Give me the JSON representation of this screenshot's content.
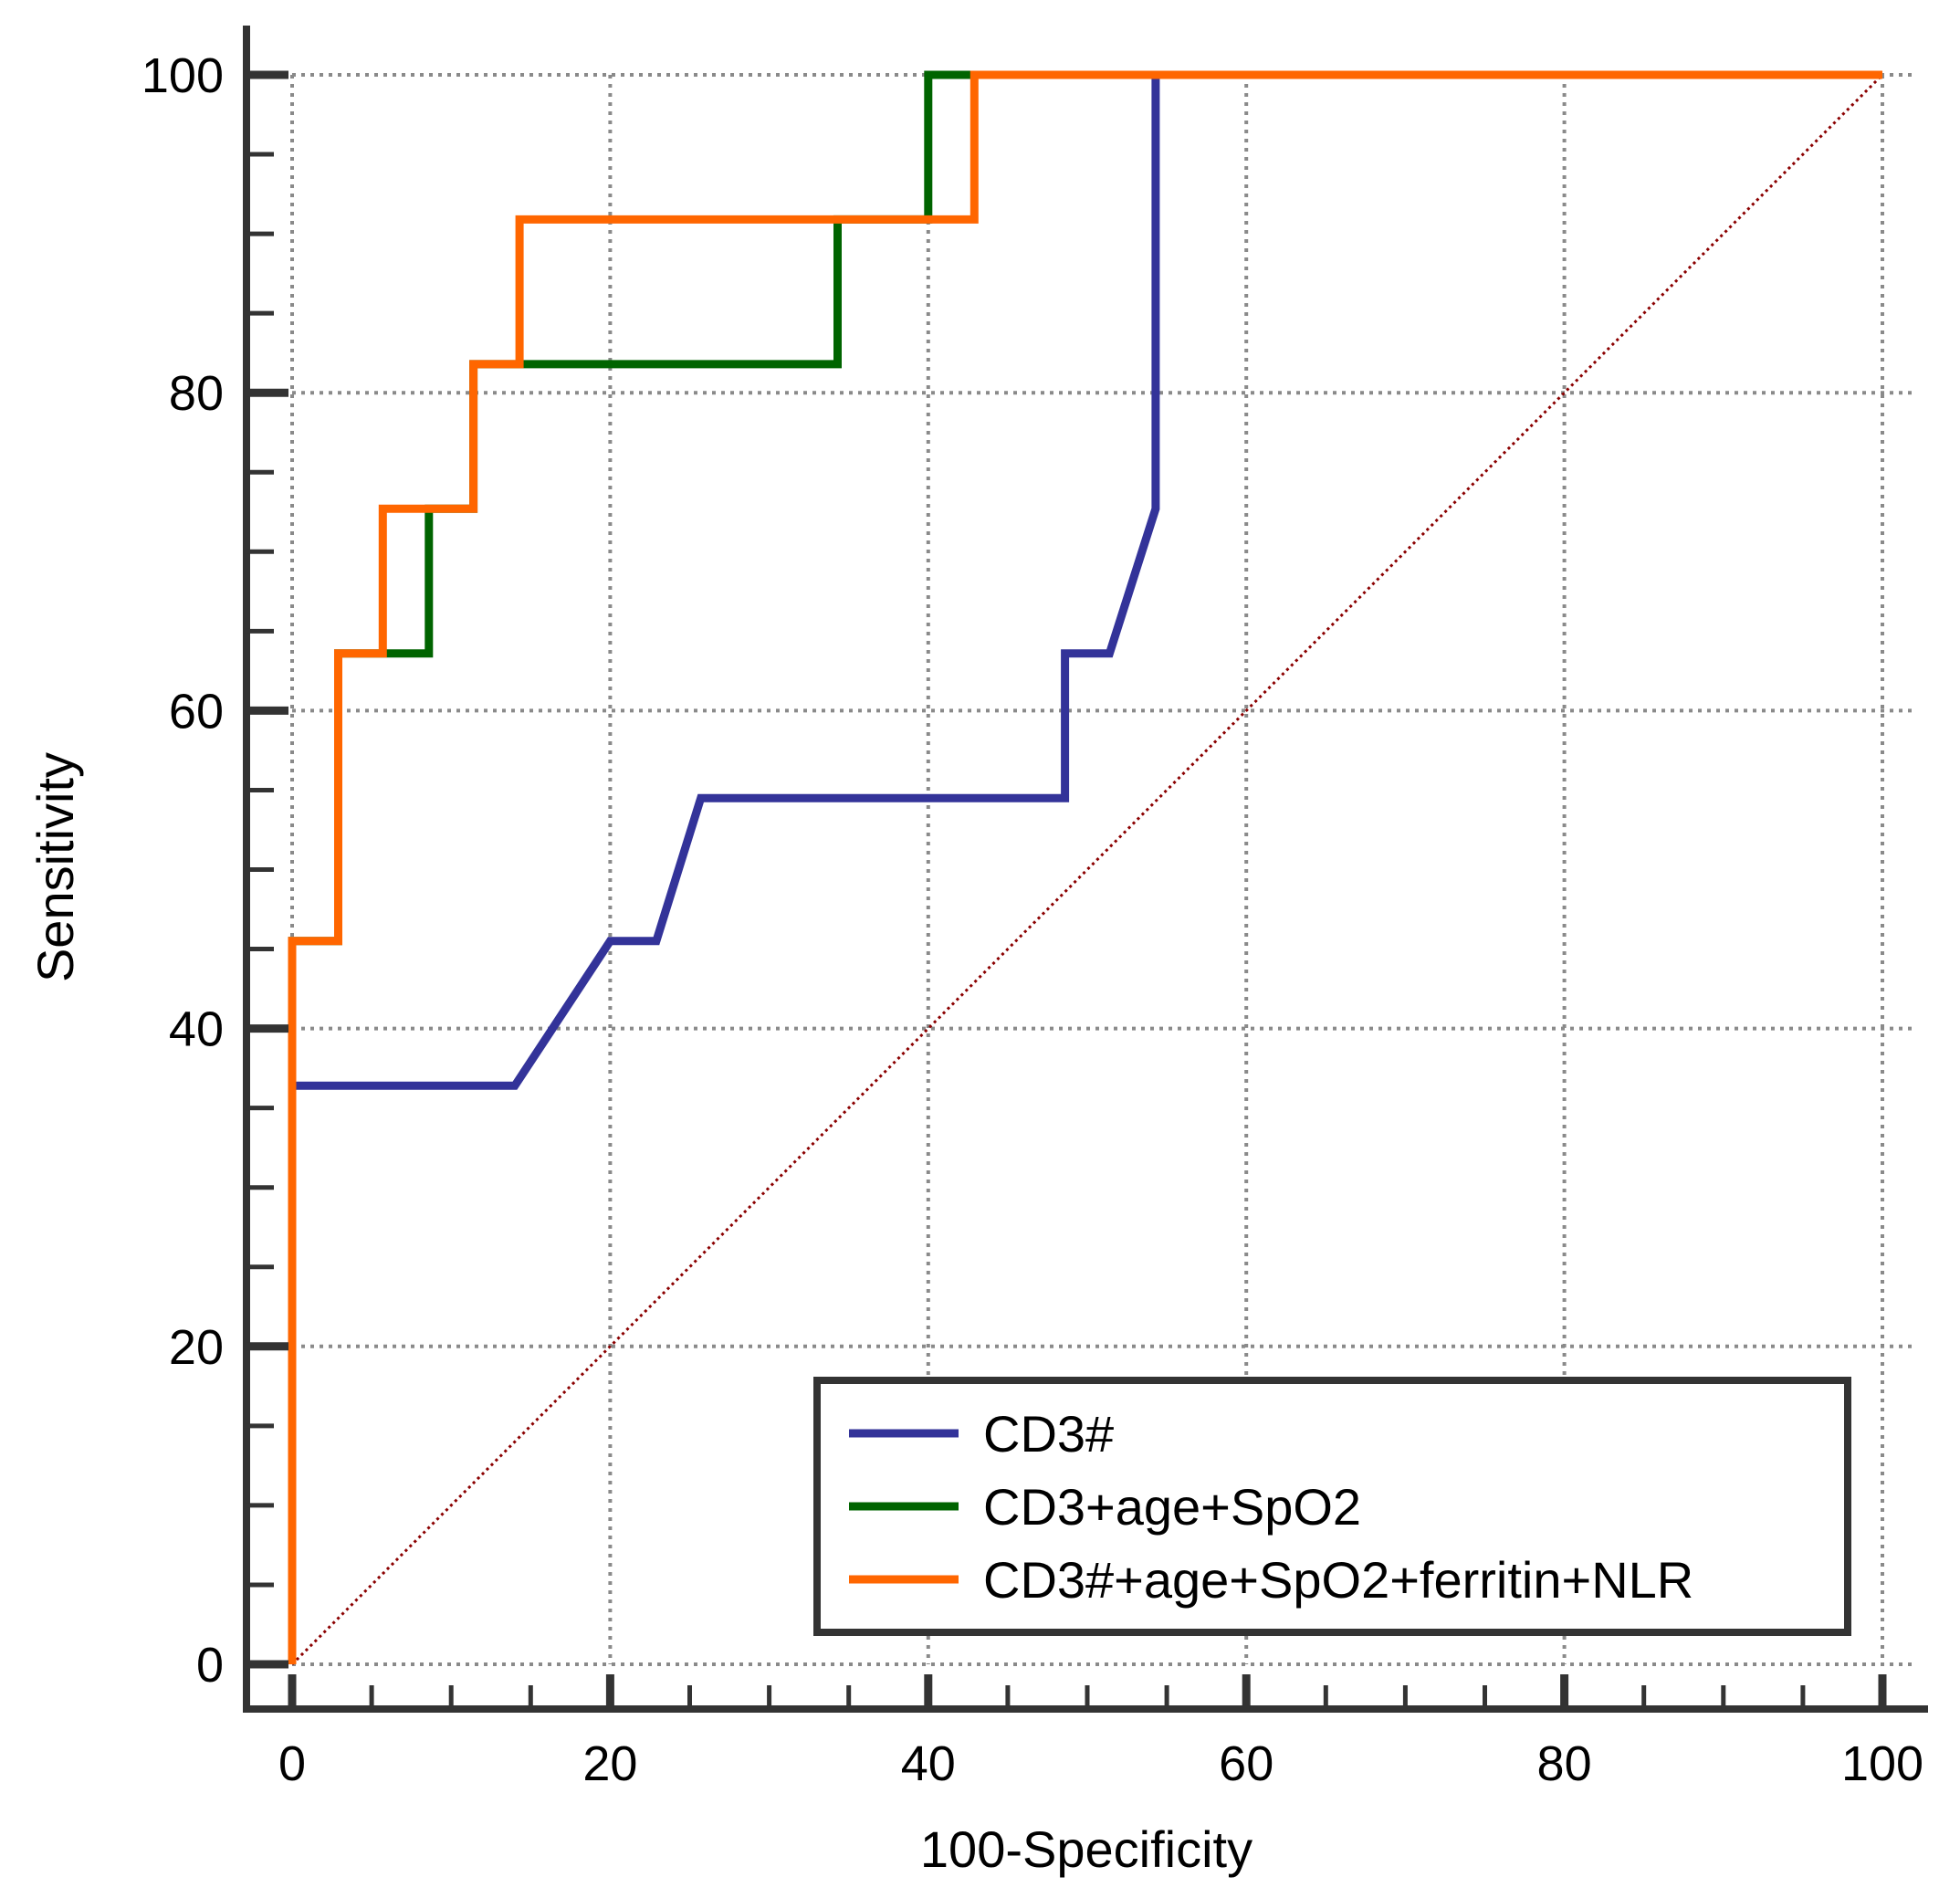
{
  "chart_data": {
    "type": "line",
    "title": "",
    "xlabel": "100-Specificity",
    "ylabel": "Sensitivity",
    "xlim": [
      0,
      100
    ],
    "ylim": [
      0,
      100
    ],
    "xticks": [
      0,
      20,
      40,
      60,
      80,
      100
    ],
    "yticks": [
      0,
      20,
      40,
      60,
      80,
      100
    ],
    "xtick_labels": [
      "0",
      "20",
      "40",
      "60",
      "80",
      "100"
    ],
    "ytick_labels": [
      "0",
      "20",
      "40",
      "60",
      "80",
      "100"
    ],
    "grid": true,
    "legend_position": "bottom-right",
    "reference_line": {
      "name": "chance",
      "color": "#8b0000",
      "x": [
        0,
        100
      ],
      "y": [
        0,
        100
      ]
    },
    "series": [
      {
        "name": "CD3#",
        "color": "#333399",
        "x": [
          0,
          0,
          14,
          20,
          22.9,
          25.7,
          48.6,
          48.6,
          51.4,
          54.3,
          54.3,
          100
        ],
        "y": [
          0,
          36.4,
          36.4,
          45.5,
          45.5,
          54.5,
          54.5,
          63.6,
          63.6,
          72.7,
          100,
          100
        ]
      },
      {
        "name": "CD3+age+SpO2",
        "color": "#006400",
        "x": [
          0,
          0,
          2.9,
          2.9,
          8.6,
          8.6,
          11.4,
          11.4,
          34.3,
          34.3,
          40,
          40,
          100
        ],
        "y": [
          0,
          45.5,
          45.5,
          63.6,
          63.6,
          72.7,
          72.7,
          81.8,
          81.8,
          90.9,
          90.9,
          100,
          100
        ]
      },
      {
        "name": "CD3#+age+SpO2+ferritin+NLR",
        "color": "#ff6600",
        "x": [
          0,
          0,
          2.9,
          2.9,
          5.7,
          5.7,
          11.4,
          11.4,
          14.3,
          14.3,
          42.9,
          42.9,
          100
        ],
        "y": [
          0,
          45.5,
          45.5,
          63.6,
          63.6,
          72.7,
          72.7,
          81.8,
          81.8,
          90.9,
          90.9,
          100,
          100
        ]
      }
    ]
  }
}
